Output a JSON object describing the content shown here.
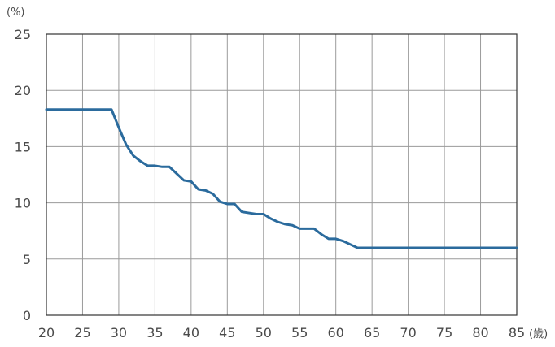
{
  "chart_data": {
    "type": "line",
    "ylabel": "(%)",
    "xlabel": "(歳)",
    "xlim": [
      20,
      85
    ],
    "ylim": [
      0,
      25
    ],
    "grid": true,
    "x_ticks": [
      20,
      25,
      30,
      35,
      40,
      45,
      50,
      55,
      60,
      65,
      70,
      75,
      80,
      85
    ],
    "y_ticks": [
      0,
      5,
      10,
      15,
      20,
      25
    ],
    "x_tick_labels": [
      "20",
      "25",
      "30",
      "35",
      "40",
      "45",
      "50",
      "55",
      "60",
      "65",
      "70",
      "75",
      "80",
      "85"
    ],
    "y_tick_labels": [
      "0",
      "5",
      "10",
      "15",
      "20",
      "25"
    ],
    "series": [
      {
        "color": "#2b6b9d",
        "x": [
          20,
          29,
          30,
          31,
          32,
          33,
          34,
          35,
          36,
          37,
          38,
          39,
          40,
          41,
          42,
          43,
          44,
          45,
          46,
          47,
          48,
          49,
          50,
          51,
          52,
          53,
          54,
          55,
          56,
          57,
          58,
          59,
          60,
          61,
          62,
          63,
          64,
          65,
          70,
          75,
          80,
          85
        ],
        "y": [
          18.3,
          18.3,
          16.7,
          15.2,
          14.2,
          13.7,
          13.3,
          13.3,
          13.2,
          13.2,
          12.6,
          12.0,
          11.9,
          11.2,
          11.1,
          10.8,
          10.1,
          9.9,
          9.9,
          9.2,
          9.1,
          9.0,
          9.0,
          8.6,
          8.3,
          8.1,
          8.0,
          7.7,
          7.7,
          7.7,
          7.2,
          6.8,
          6.8,
          6.6,
          6.3,
          6.0,
          6.0,
          6.0,
          6.0,
          6.0,
          6.0,
          6.0
        ]
      }
    ]
  }
}
